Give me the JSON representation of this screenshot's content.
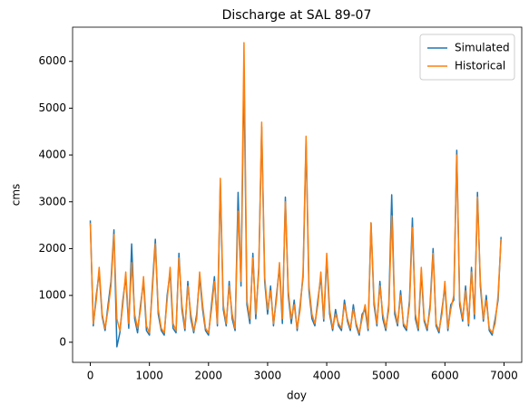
{
  "chart_data": {
    "type": "line",
    "title": "Discharge at SAL 89-07",
    "xlabel": "doy",
    "ylabel": "cms",
    "x": [
      0,
      50,
      100,
      150,
      200,
      250,
      300,
      350,
      400,
      450,
      500,
      550,
      600,
      650,
      700,
      750,
      800,
      850,
      900,
      950,
      1000,
      1050,
      1100,
      1150,
      1200,
      1250,
      1300,
      1350,
      1400,
      1450,
      1500,
      1550,
      1600,
      1650,
      1700,
      1750,
      1800,
      1850,
      1900,
      1950,
      2000,
      2050,
      2100,
      2150,
      2200,
      2250,
      2300,
      2350,
      2400,
      2450,
      2500,
      2550,
      2600,
      2650,
      2700,
      2750,
      2800,
      2850,
      2900,
      2950,
      3000,
      3050,
      3100,
      3150,
      3200,
      3250,
      3300,
      3350,
      3400,
      3450,
      3500,
      3550,
      3600,
      3650,
      3700,
      3750,
      3800,
      3850,
      3900,
      3950,
      4000,
      4050,
      4100,
      4150,
      4200,
      4250,
      4300,
      4350,
      4400,
      4450,
      4500,
      4550,
      4600,
      4650,
      4700,
      4750,
      4800,
      4850,
      4900,
      4950,
      5000,
      5050,
      5100,
      5150,
      5200,
      5250,
      5300,
      5350,
      5400,
      5450,
      5500,
      5550,
      5600,
      5650,
      5700,
      5750,
      5800,
      5850,
      5900,
      5950,
      6000,
      6050,
      6100,
      6150,
      6200,
      6250,
      6300,
      6350,
      6400,
      6450,
      6500,
      6550,
      6600,
      6650,
      6700,
      6750,
      6800,
      6850,
      6900,
      6950
    ],
    "series": [
      {
        "name": "Simulated",
        "color": "#1f77b4",
        "values": [
          2600,
          350,
          1000,
          1500,
          550,
          250,
          800,
          1300,
          2400,
          -100,
          200,
          900,
          1400,
          300,
          2100,
          500,
          200,
          800,
          1300,
          250,
          150,
          1200,
          2200,
          600,
          250,
          150,
          1000,
          1500,
          300,
          200,
          1900,
          700,
          250,
          1300,
          500,
          200,
          600,
          1400,
          700,
          250,
          150,
          800,
          1400,
          350,
          3400,
          700,
          350,
          1300,
          500,
          250,
          3200,
          1200,
          5800,
          800,
          400,
          1900,
          500,
          1600,
          4600,
          1300,
          600,
          1200,
          350,
          1000,
          1600,
          400,
          3100,
          1000,
          400,
          900,
          250,
          800,
          1400,
          4300,
          1100,
          500,
          350,
          900,
          1400,
          450,
          1800,
          600,
          250,
          700,
          350,
          250,
          900,
          450,
          250,
          800,
          350,
          150,
          600,
          700,
          250,
          2550,
          800,
          350,
          1300,
          500,
          250,
          800,
          3150,
          600,
          350,
          1100,
          350,
          250,
          900,
          2650,
          500,
          250,
          1500,
          450,
          250,
          800,
          2000,
          350,
          200,
          700,
          1200,
          250,
          800,
          900,
          4100,
          800,
          450,
          1200,
          350,
          1600,
          500,
          3200,
          1200,
          450,
          1000,
          250,
          150,
          500,
          900,
          2250
        ]
      },
      {
        "name": "Historical",
        "color": "#ff7f0e",
        "values": [
          2550,
          400,
          900,
          1600,
          600,
          300,
          700,
          1200,
          2300,
          500,
          250,
          800,
          1500,
          400,
          1700,
          600,
          300,
          700,
          1400,
          350,
          200,
          1100,
          2100,
          700,
          300,
          200,
          900,
          1600,
          400,
          250,
          1800,
          800,
          300,
          1200,
          600,
          250,
          500,
          1500,
          800,
          300,
          200,
          700,
          1300,
          400,
          3500,
          800,
          400,
          1200,
          600,
          300,
          2800,
          1300,
          6400,
          900,
          500,
          1800,
          600,
          1500,
          4700,
          1400,
          700,
          1100,
          400,
          900,
          1700,
          500,
          3000,
          1100,
          500,
          800,
          300,
          700,
          1500,
          4400,
          1200,
          600,
          400,
          800,
          1500,
          500,
          1900,
          700,
          300,
          600,
          400,
          300,
          800,
          500,
          300,
          700,
          400,
          200,
          500,
          800,
          300,
          2550,
          900,
          400,
          1200,
          600,
          300,
          700,
          2700,
          700,
          400,
          1000,
          400,
          300,
          800,
          2450,
          600,
          300,
          1600,
          500,
          300,
          700,
          1900,
          400,
          250,
          600,
          1300,
          300,
          700,
          1000,
          4000,
          900,
          500,
          1100,
          400,
          1500,
          600,
          3100,
          1300,
          500,
          900,
          300,
          200,
          400,
          1000,
          2200
        ]
      }
    ],
    "xlim": [
      -300,
      7300
    ],
    "xticks": [
      0,
      1000,
      2000,
      3000,
      4000,
      5000,
      6000,
      7000
    ],
    "ylim": [
      -430,
      6730
    ],
    "yticks": [
      0,
      1000,
      2000,
      3000,
      4000,
      5000,
      6000
    ],
    "legend": "upper right"
  }
}
